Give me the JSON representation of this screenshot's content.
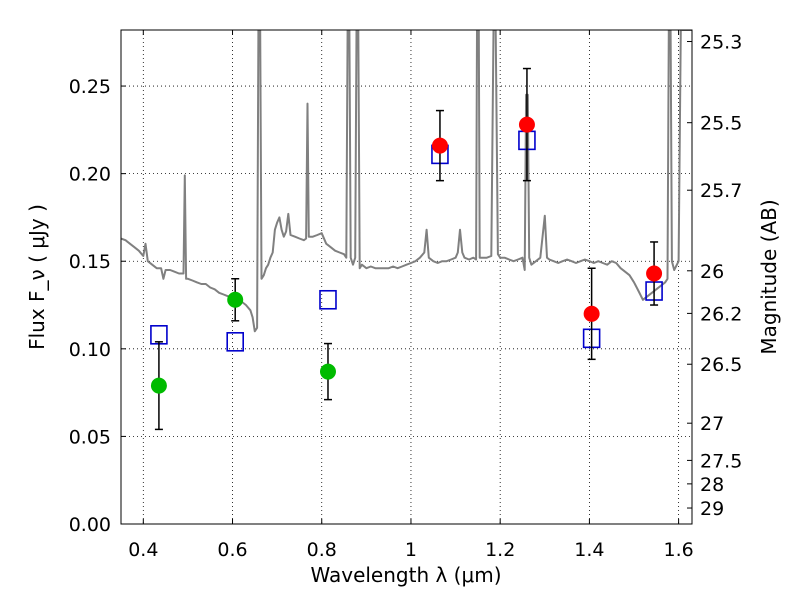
{
  "chart_data": {
    "type": "scatter",
    "title": "",
    "xlabel": "Wavelength  λ (μm)",
    "ylabel": "Flux  F_ν  ( μJy )",
    "ylabel_right": "Magnitude (AB)",
    "xlim": [
      0.35,
      1.63
    ],
    "ylim": [
      0.0,
      0.282
    ],
    "xticks": [
      0.4,
      0.6,
      0.8,
      1.0,
      1.2,
      1.4,
      1.6
    ],
    "xtick_labels": [
      "0.4",
      "0.6",
      "0.8",
      "1",
      "1.2",
      "1.4",
      "1.6"
    ],
    "yticks": [
      0.0,
      0.05,
      0.1,
      0.15,
      0.2,
      0.25
    ],
    "ytick_labels": [
      "0.00",
      "0.05",
      "0.10",
      "0.15",
      "0.20",
      "0.25"
    ],
    "right_ticks": [
      {
        "label": "25.3",
        "mag": 25.3
      },
      {
        "label": "25.5",
        "mag": 25.5
      },
      {
        "label": "25.7",
        "mag": 25.7
      },
      {
        "label": "26",
        "mag": 26.0
      },
      {
        "label": "26.2",
        "mag": 26.2
      },
      {
        "label": "26.5",
        "mag": 26.5
      },
      {
        "label": "27",
        "mag": 27.0
      },
      {
        "label": "27.5",
        "mag": 27.5
      },
      {
        "label": "28",
        "mag": 28.0
      },
      {
        "label": "29",
        "mag": 29.0
      }
    ],
    "grid": true,
    "series": [
      {
        "marker": "circle",
        "color": "#00bb00",
        "points": [
          {
            "x": 0.435,
            "y": 0.079,
            "err": 0.025
          },
          {
            "x": 0.606,
            "y": 0.128,
            "err": 0.012
          },
          {
            "x": 0.814,
            "y": 0.087,
            "err": 0.016
          }
        ]
      },
      {
        "marker": "circle",
        "color": "#ff0000",
        "points": [
          {
            "x": 1.065,
            "y": 0.216,
            "err": 0.02
          },
          {
            "x": 1.26,
            "y": 0.228,
            "err": 0.032
          },
          {
            "x": 1.405,
            "y": 0.12,
            "err": 0.026
          },
          {
            "x": 1.545,
            "y": 0.143,
            "err": 0.018
          }
        ]
      },
      {
        "marker": "open-square",
        "color": "#0000cc",
        "points": [
          {
            "x": 0.435,
            "y": 0.108
          },
          {
            "x": 0.606,
            "y": 0.104
          },
          {
            "x": 0.814,
            "y": 0.128
          },
          {
            "x": 1.065,
            "y": 0.211
          },
          {
            "x": 1.26,
            "y": 0.219
          },
          {
            "x": 1.405,
            "y": 0.106
          },
          {
            "x": 1.545,
            "y": 0.133
          }
        ]
      },
      {
        "type": "line",
        "color": "#808080",
        "points": [
          [
            0.35,
            0.163
          ],
          [
            0.36,
            0.162
          ],
          [
            0.37,
            0.16
          ],
          [
            0.38,
            0.158
          ],
          [
            0.39,
            0.156
          ],
          [
            0.4,
            0.153
          ],
          [
            0.405,
            0.16
          ],
          [
            0.41,
            0.15
          ],
          [
            0.42,
            0.148
          ],
          [
            0.43,
            0.146
          ],
          [
            0.44,
            0.146
          ],
          [
            0.445,
            0.14
          ],
          [
            0.45,
            0.145
          ],
          [
            0.46,
            0.145
          ],
          [
            0.47,
            0.144
          ],
          [
            0.48,
            0.143
          ],
          [
            0.49,
            0.143
          ],
          [
            0.493,
            0.199
          ],
          [
            0.496,
            0.14
          ],
          [
            0.5,
            0.14
          ],
          [
            0.51,
            0.139
          ],
          [
            0.52,
            0.138
          ],
          [
            0.53,
            0.137
          ],
          [
            0.54,
            0.137
          ],
          [
            0.55,
            0.135
          ],
          [
            0.56,
            0.134
          ],
          [
            0.57,
            0.132
          ],
          [
            0.58,
            0.131
          ],
          [
            0.59,
            0.13
          ],
          [
            0.6,
            0.129
          ],
          [
            0.61,
            0.128
          ],
          [
            0.62,
            0.127
          ],
          [
            0.63,
            0.125
          ],
          [
            0.64,
            0.122
          ],
          [
            0.645,
            0.118
          ],
          [
            0.65,
            0.11
          ],
          [
            0.655,
            0.112
          ],
          [
            0.658,
            0.282
          ],
          [
            0.662,
            0.282
          ],
          [
            0.665,
            0.14
          ],
          [
            0.67,
            0.142
          ],
          [
            0.675,
            0.146
          ],
          [
            0.68,
            0.148
          ],
          [
            0.685,
            0.152
          ],
          [
            0.69,
            0.155
          ],
          [
            0.695,
            0.168
          ],
          [
            0.7,
            0.172
          ],
          [
            0.705,
            0.175
          ],
          [
            0.71,
            0.168
          ],
          [
            0.715,
            0.164
          ],
          [
            0.72,
            0.167
          ],
          [
            0.725,
            0.177
          ],
          [
            0.73,
            0.165
          ],
          [
            0.74,
            0.164
          ],
          [
            0.75,
            0.163
          ],
          [
            0.76,
            0.162
          ],
          [
            0.765,
            0.163
          ],
          [
            0.768,
            0.24
          ],
          [
            0.771,
            0.164
          ],
          [
            0.78,
            0.164
          ],
          [
            0.79,
            0.165
          ],
          [
            0.8,
            0.166
          ],
          [
            0.81,
            0.16
          ],
          [
            0.82,
            0.158
          ],
          [
            0.83,
            0.156
          ],
          [
            0.84,
            0.155
          ],
          [
            0.85,
            0.154
          ],
          [
            0.855,
            0.152
          ],
          [
            0.858,
            0.282
          ],
          [
            0.862,
            0.282
          ],
          [
            0.865,
            0.152
          ],
          [
            0.87,
            0.148
          ],
          [
            0.875,
            0.152
          ],
          [
            0.878,
            0.282
          ],
          [
            0.882,
            0.282
          ],
          [
            0.885,
            0.146
          ],
          [
            0.89,
            0.148
          ],
          [
            0.9,
            0.146
          ],
          [
            0.91,
            0.147
          ],
          [
            0.92,
            0.146
          ],
          [
            0.93,
            0.146
          ],
          [
            0.94,
            0.146
          ],
          [
            0.95,
            0.146
          ],
          [
            0.96,
            0.147
          ],
          [
            0.97,
            0.146
          ],
          [
            0.98,
            0.147
          ],
          [
            0.99,
            0.148
          ],
          [
            1.0,
            0.149
          ],
          [
            1.01,
            0.15
          ],
          [
            1.02,
            0.152
          ],
          [
            1.03,
            0.155
          ],
          [
            1.035,
            0.168
          ],
          [
            1.04,
            0.152
          ],
          [
            1.05,
            0.15
          ],
          [
            1.06,
            0.149
          ],
          [
            1.07,
            0.15
          ],
          [
            1.08,
            0.15
          ],
          [
            1.09,
            0.151
          ],
          [
            1.1,
            0.152
          ],
          [
            1.105,
            0.155
          ],
          [
            1.11,
            0.168
          ],
          [
            1.115,
            0.155
          ],
          [
            1.12,
            0.152
          ],
          [
            1.13,
            0.151
          ],
          [
            1.14,
            0.152
          ],
          [
            1.146,
            0.151
          ],
          [
            1.148,
            0.282
          ],
          [
            1.152,
            0.282
          ],
          [
            1.154,
            0.152
          ],
          [
            1.17,
            0.152
          ],
          [
            1.18,
            0.153
          ],
          [
            1.185,
            0.282
          ],
          [
            1.19,
            0.282
          ],
          [
            1.195,
            0.154
          ],
          [
            1.2,
            0.152
          ],
          [
            1.21,
            0.152
          ],
          [
            1.22,
            0.151
          ],
          [
            1.23,
            0.15
          ],
          [
            1.24,
            0.151
          ],
          [
            1.25,
            0.152
          ],
          [
            1.255,
            0.145
          ],
          [
            1.258,
            0.245
          ],
          [
            1.262,
            0.245
          ],
          [
            1.265,
            0.152
          ],
          [
            1.27,
            0.148
          ],
          [
            1.28,
            0.15
          ],
          [
            1.29,
            0.152
          ],
          [
            1.3,
            0.176
          ],
          [
            1.305,
            0.152
          ],
          [
            1.31,
            0.151
          ],
          [
            1.32,
            0.15
          ],
          [
            1.33,
            0.149
          ],
          [
            1.34,
            0.15
          ],
          [
            1.35,
            0.151
          ],
          [
            1.36,
            0.15
          ],
          [
            1.37,
            0.149
          ],
          [
            1.38,
            0.15
          ],
          [
            1.39,
            0.151
          ],
          [
            1.4,
            0.15
          ],
          [
            1.41,
            0.149
          ],
          [
            1.42,
            0.15
          ],
          [
            1.43,
            0.149
          ],
          [
            1.44,
            0.148
          ],
          [
            1.45,
            0.15
          ],
          [
            1.46,
            0.149
          ],
          [
            1.47,
            0.146
          ],
          [
            1.48,
            0.144
          ],
          [
            1.49,
            0.142
          ],
          [
            1.5,
            0.138
          ],
          [
            1.51,
            0.133
          ],
          [
            1.52,
            0.128
          ],
          [
            1.53,
            0.13
          ],
          [
            1.54,
            0.132
          ],
          [
            1.55,
            0.134
          ],
          [
            1.56,
            0.136
          ],
          [
            1.57,
            0.138
          ],
          [
            1.575,
            0.14
          ],
          [
            1.578,
            0.282
          ],
          [
            1.582,
            0.282
          ],
          [
            1.585,
            0.15
          ],
          [
            1.59,
            0.145
          ],
          [
            1.6,
            0.15
          ],
          [
            1.605,
            0.282
          ],
          [
            1.63,
            0.282
          ]
        ]
      }
    ]
  }
}
